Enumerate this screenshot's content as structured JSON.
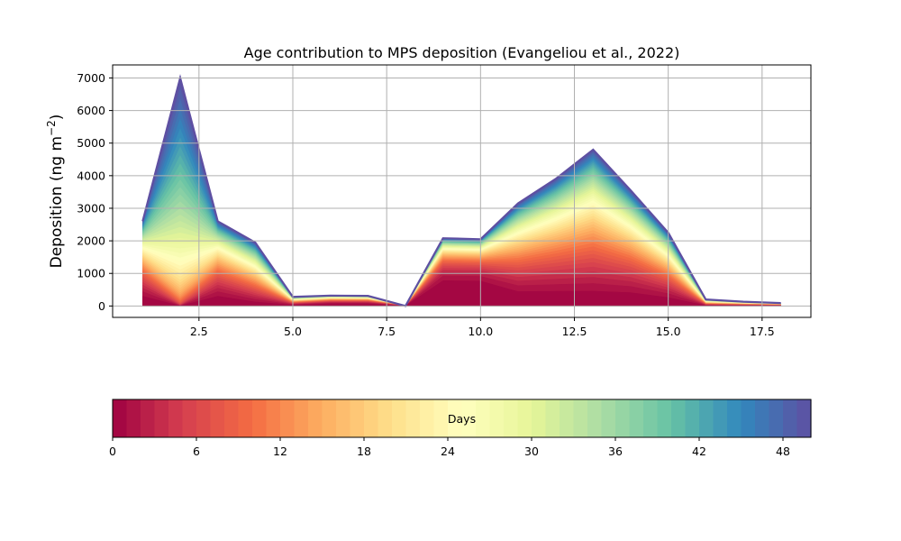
{
  "chart_data": {
    "type": "area",
    "title": "Age contribution to MPS deposition (Evangeliou et al., 2022)",
    "xlabel": "",
    "ylabel": "Deposition (ng m",
    "ylabel_superscript": "−2",
    "ylabel_suffix": ")",
    "xlim": [
      0.2,
      18.8
    ],
    "ylim": [
      -350,
      7400
    ],
    "grid": true,
    "x_ticks": [
      2.5,
      5.0,
      7.5,
      10.0,
      12.5,
      15.0,
      17.5
    ],
    "x_tick_labels": [
      "2.5",
      "5.0",
      "7.5",
      "10.0",
      "12.5",
      "15.0",
      "17.5"
    ],
    "y_ticks": [
      0,
      1000,
      2000,
      3000,
      4000,
      5000,
      6000,
      7000
    ],
    "y_tick_labels": [
      "0",
      "1000",
      "2000",
      "3000",
      "4000",
      "5000",
      "6000",
      "7000"
    ],
    "x": [
      1,
      2,
      3,
      4,
      5,
      6,
      7,
      8,
      9,
      10,
      11,
      12,
      13,
      14,
      15,
      16,
      17,
      18
    ],
    "total": [
      2600,
      7000,
      2600,
      1950,
      280,
      320,
      310,
      0,
      2080,
      2050,
      3150,
      3900,
      4800,
      3550,
      2250,
      200,
      130,
      90
    ],
    "colorbar": {
      "label": "Days",
      "colormap": "Spectral",
      "min": 0,
      "max": 50,
      "levels": 50,
      "ticks": [
        0,
        6,
        12,
        18,
        24,
        30,
        36,
        42,
        48
      ],
      "tick_labels": [
        "0",
        "6",
        "12",
        "18",
        "24",
        "30",
        "36",
        "42",
        "48"
      ]
    }
  }
}
